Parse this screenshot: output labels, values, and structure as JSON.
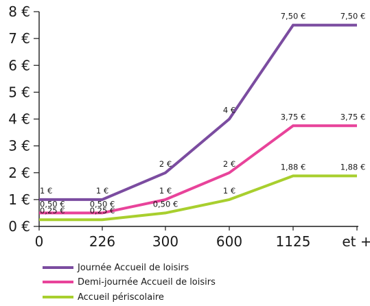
{
  "chart_data": {
    "type": "line",
    "categories": [
      "0",
      "226",
      "300",
      "600",
      "1125",
      "et +"
    ],
    "y_ticks": [
      "0 €",
      "1 €",
      "2 €",
      "3 €",
      "4 €",
      "5 €",
      "6 €",
      "7 €",
      "8 €"
    ],
    "ylim": [
      0,
      8
    ],
    "grid": false,
    "legend_position": "bottom-left",
    "series": [
      {
        "name": "Journée Accueil de loisirs",
        "color": "#7b4ca0",
        "values": [
          1,
          1,
          2,
          4,
          7.5,
          7.5
        ],
        "labels": [
          "1 €",
          "1 €",
          "2 €",
          "4 €",
          "7,50 €",
          "7,50 €"
        ]
      },
      {
        "name": "Demi-journée Accueil de loisirs",
        "color": "#e8439a",
        "values": [
          0.5,
          0.5,
          1,
          2,
          3.75,
          3.75
        ],
        "labels": [
          "0,50 €",
          "0,50 €",
          "1 €",
          "2 €",
          "3,75 €",
          "3,75 €"
        ]
      },
      {
        "name": "Accueil périscolaire",
        "color": "#a8cf2e",
        "values": [
          0.25,
          0.25,
          0.5,
          1,
          1.88,
          1.88
        ],
        "labels": [
          "0,25 €",
          "0,25 €",
          "0,50 €",
          "1 €",
          "1,88 €",
          "1,88 €"
        ]
      }
    ]
  }
}
